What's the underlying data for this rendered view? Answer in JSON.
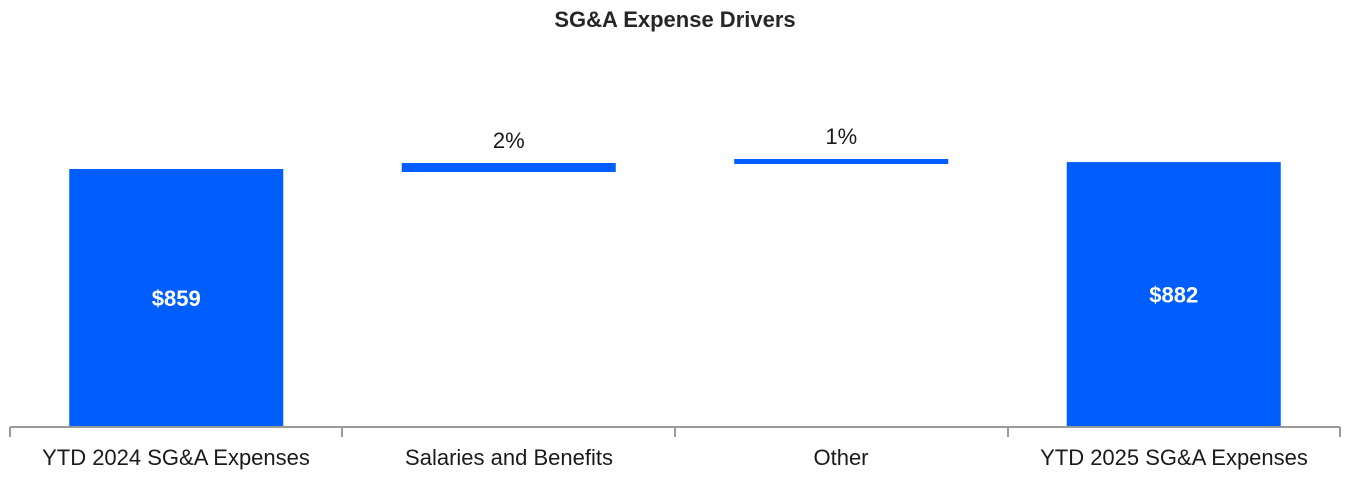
{
  "chart_data": {
    "type": "bar",
    "subtype": "waterfall",
    "title": "SG&A Expense Drivers",
    "xlabel": "",
    "ylabel": "",
    "categories": [
      "YTD 2024 SG&A Expenses",
      "Salaries and Benefits",
      "Other",
      "YTD 2025 SG&A Expenses"
    ],
    "bars": [
      {
        "kind": "total",
        "start": 0,
        "end": 859,
        "label": "$859"
      },
      {
        "kind": "delta",
        "start": 859,
        "end": 876,
        "label": "2%"
      },
      {
        "kind": "delta",
        "start": 876,
        "end": 882,
        "label": "1%"
      },
      {
        "kind": "total",
        "start": 0,
        "end": 882,
        "label": "$882"
      }
    ],
    "ylim": [
      0,
      1000
    ],
    "grid": false,
    "bar_color": "#005EFF"
  }
}
